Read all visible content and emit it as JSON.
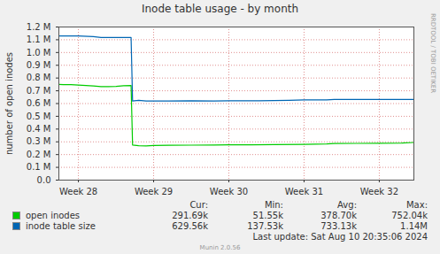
{
  "chart_data": {
    "type": "line",
    "title": "Inode table usage - by month",
    "y_label": "number of open inodes",
    "annotations": [
      "RRDTOOL / TOBI OETIKER"
    ],
    "xlim": [
      27.74,
      32.46
    ],
    "xticks": [
      {
        "value": 28,
        "label": "Week 28"
      },
      {
        "value": 29,
        "label": "Week 29"
      },
      {
        "value": 30,
        "label": "Week 30"
      },
      {
        "value": 31,
        "label": "Week 31"
      },
      {
        "value": 32,
        "label": "Week 32"
      }
    ],
    "ylim": [
      0,
      1200000
    ],
    "yticks": [
      {
        "value": 0,
        "label": "0.0"
      },
      {
        "value": 100000,
        "label": "0.1 M"
      },
      {
        "value": 200000,
        "label": "0.2 M"
      },
      {
        "value": 300000,
        "label": "0.3 M"
      },
      {
        "value": 400000,
        "label": "0.4 M"
      },
      {
        "value": 500000,
        "label": "0.5 M"
      },
      {
        "value": 600000,
        "label": "0.6 M"
      },
      {
        "value": 700000,
        "label": "0.7 M"
      },
      {
        "value": 800000,
        "label": "0.8 M"
      },
      {
        "value": 900000,
        "label": "0.9 M"
      },
      {
        "value": 1000000,
        "label": "1.0 M"
      },
      {
        "value": 1100000,
        "label": "1.1 M"
      },
      {
        "value": 1200000,
        "label": "1.2 M"
      }
    ],
    "grid": true,
    "legend_columns": [
      "Cur:",
      "Min:",
      "Avg:",
      "Max:"
    ],
    "series": [
      {
        "name": "open inodes",
        "color": "#00cc00",
        "stats": [
          "291.69k",
          "51.55k",
          "378.70k",
          "752.04k"
        ],
        "x": [
          27.74,
          27.8,
          27.9,
          28.0,
          28.1,
          28.2,
          28.3,
          28.4,
          28.5,
          28.6,
          28.7,
          28.72,
          28.8,
          28.9,
          29.0,
          29.2,
          29.5,
          29.8,
          30.0,
          30.3,
          30.6,
          31.0,
          31.3,
          31.4,
          31.7,
          32.0,
          32.3,
          32.46
        ],
        "values": [
          750000,
          748000,
          748000,
          745000,
          742000,
          738000,
          733000,
          732000,
          735000,
          740000,
          742000,
          275000,
          270000,
          268000,
          272000,
          273000,
          274000,
          275000,
          276000,
          277000,
          278000,
          280000,
          283000,
          287000,
          288000,
          289000,
          290000,
          295000
        ]
      },
      {
        "name": "inode table size",
        "color": "#0066b3",
        "stats": [
          "629.56k",
          "137.53k",
          "733.13k",
          "1.14M"
        ],
        "x": [
          27.74,
          28.0,
          28.2,
          28.3,
          28.5,
          28.7,
          28.72,
          28.8,
          28.9,
          29.2,
          29.5,
          29.8,
          30.0,
          30.4,
          30.8,
          31.0,
          31.3,
          31.4,
          32.46
        ],
        "values": [
          1130000,
          1130000,
          1125000,
          1118000,
          1118000,
          1118000,
          620000,
          625000,
          620000,
          620000,
          622000,
          620000,
          622000,
          622000,
          625000,
          628000,
          628000,
          632000,
          632000
        ]
      }
    ],
    "footer": [
      "Last update: Sat Aug 10 20:35:06 2024",
      "Munin 2.0.56"
    ]
  }
}
